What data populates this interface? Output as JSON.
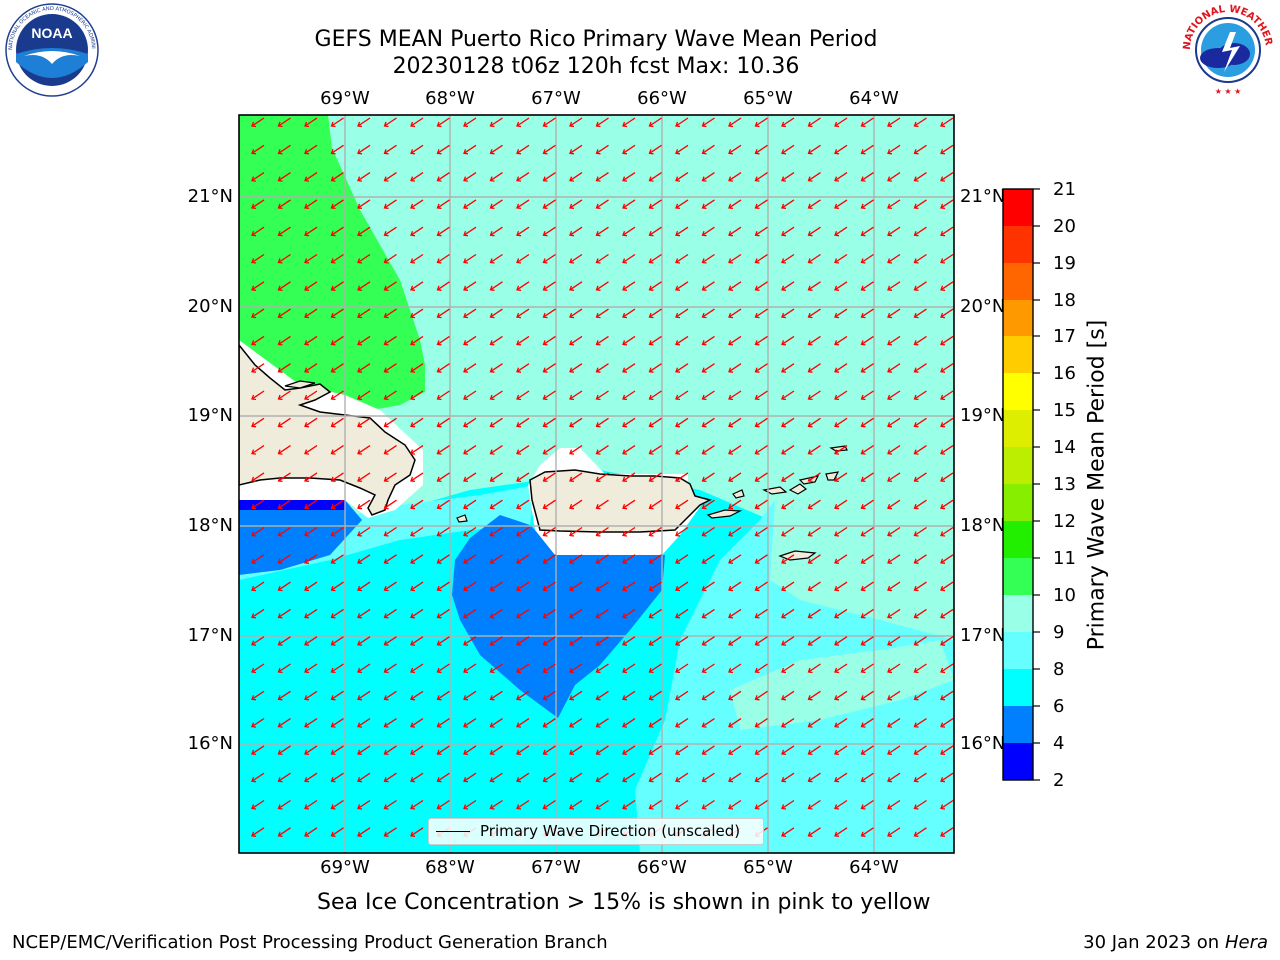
{
  "title": {
    "line1": "GEFS MEAN Puerto Rico Primary Wave Mean Period",
    "line2": "20230128 t06z 120h fcst   Max: 10.36"
  },
  "logos": {
    "left": {
      "name": "noaa-logo",
      "text": "NOAA",
      "ring_text": "NATIONAL OCEANIC AND ATMOSPHERIC ADMINISTRATION · U.S. DEPARTMENT OF COMMERCE"
    },
    "right": {
      "name": "nws-logo",
      "ring_text": "NATIONAL WEATHER SERVICE"
    }
  },
  "map": {
    "lon_labels": [
      "69°W",
      "68°W",
      "67°W",
      "66°W",
      "65°W",
      "64°W"
    ],
    "lat_labels": [
      "21°N",
      "20°N",
      "19°N",
      "18°N",
      "17°N",
      "16°N"
    ],
    "legend_label": "Primary Wave Direction (unscaled)",
    "colors": {
      "land": "#efecdc",
      "coast": "#000000",
      "grid": "#b0b0b0",
      "arrow": "#ff0000"
    }
  },
  "colorbar": {
    "label": "Primary Wave Mean Period [s]",
    "tick_labels": [
      "2",
      "4",
      "6",
      "8",
      "9",
      "10",
      "11",
      "12",
      "13",
      "14",
      "15",
      "16",
      "17",
      "18",
      "19",
      "20",
      "21"
    ],
    "bands": [
      {
        "from": 2,
        "to": 4,
        "color": "#0000ff"
      },
      {
        "from": 4,
        "to": 6,
        "color": "#0080ff"
      },
      {
        "from": 6,
        "to": 8,
        "color": "#00ffff"
      },
      {
        "from": 8,
        "to": 9,
        "color": "#66ffff"
      },
      {
        "from": 9,
        "to": 10,
        "color": "#99ffe6"
      },
      {
        "from": 10,
        "to": 11,
        "color": "#33ff55"
      },
      {
        "from": 11,
        "to": 12,
        "color": "#22ee00"
      },
      {
        "from": 12,
        "to": 13,
        "color": "#88ee00"
      },
      {
        "from": 13,
        "to": 14,
        "color": "#bbee00"
      },
      {
        "from": 14,
        "to": 15,
        "color": "#ddee00"
      },
      {
        "from": 15,
        "to": 16,
        "color": "#ffff00"
      },
      {
        "from": 16,
        "to": 17,
        "color": "#ffcc00"
      },
      {
        "from": 17,
        "to": 18,
        "color": "#ff9900"
      },
      {
        "from": 18,
        "to": 19,
        "color": "#ff6600"
      },
      {
        "from": 19,
        "to": 20,
        "color": "#ff3300"
      },
      {
        "from": 20,
        "to": 21,
        "color": "#ff0000"
      }
    ]
  },
  "note": "Sea Ice Concentration > 15% is shown in pink to yellow",
  "footer": {
    "left": "NCEP/EMC/Verification Post Processing Product Generation Branch",
    "right_date": "30 Jan 2023 on",
    "right_host": "Hera"
  }
}
